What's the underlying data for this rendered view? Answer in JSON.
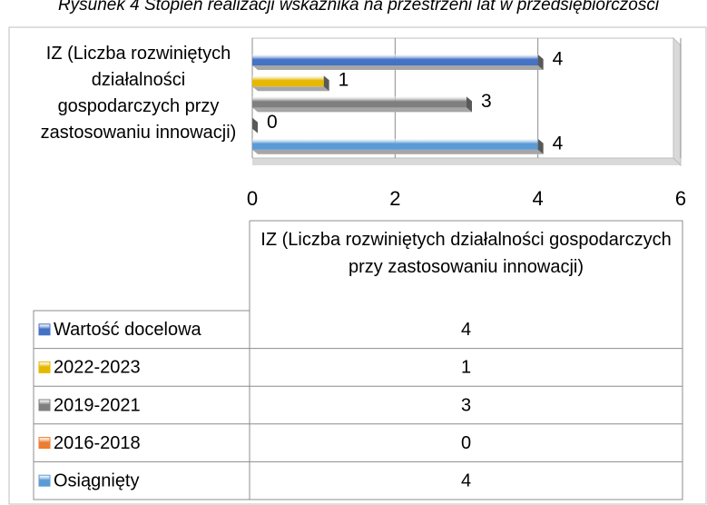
{
  "chart_data": {
    "type": "hbar3d",
    "title": "Rysunek 4 Stopień realizacji wskaźnika na przestrzeni lat w przedsiębiorczości",
    "categories": [
      "IZ (Liczba rozwiniętych działalności gospodarczych przy zastosowaniu innowacji)"
    ],
    "series": [
      {
        "name": "Wartość docelowa",
        "color": "#4472c4",
        "values": [
          4
        ]
      },
      {
        "name": "2022-2023",
        "color": "#e6b800",
        "values": [
          1
        ]
      },
      {
        "name": "2019-2021",
        "color": "#7f7f7f",
        "values": [
          3
        ]
      },
      {
        "name": "2016-2018",
        "color": "#ed7d31",
        "values": [
          0
        ]
      },
      {
        "name": "Osiągnięty",
        "color": "#5b9bd5",
        "values": [
          4
        ]
      }
    ],
    "xlim": [
      0,
      6
    ],
    "xticks": [
      0,
      2,
      4,
      6
    ],
    "grid": true,
    "data_table": true
  }
}
